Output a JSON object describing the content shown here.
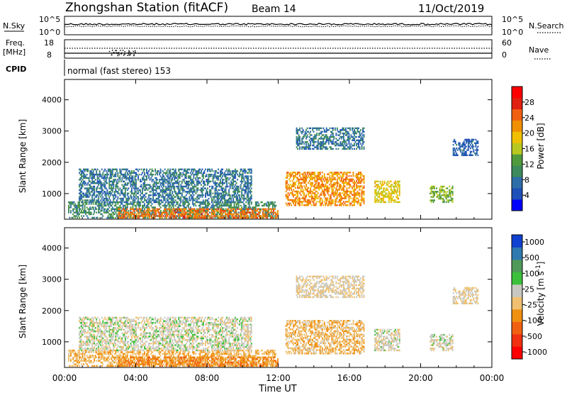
{
  "header": {
    "title": "Zhongshan Station (fitACF)",
    "beam": "Beam 14",
    "date": "11/Oct/2019"
  },
  "status_panel": {
    "nsky_label": "N.Sky",
    "nsearch_label": "N.Search",
    "noise_ticks": [
      "10^5",
      "10^0"
    ],
    "freq_label_1": "Freq.",
    "freq_label_2": "[MHz]",
    "freq_ticks": [
      "18",
      "8"
    ],
    "nave_label": "Nave",
    "nave_ticks": [
      "60",
      "0"
    ],
    "cpid_label": "CPID",
    "cpid_text": "normal (fast stereo) 153"
  },
  "chart_data": [
    {
      "type": "heatmap",
      "panel": "power",
      "ylabel": "Slant Range [km]",
      "xlabel": "",
      "yticks": [
        1000,
        2000,
        3000,
        4000
      ],
      "ylim": [
        180,
        4650
      ],
      "xlim": [
        0,
        24
      ],
      "colorbar": {
        "label": "Power [dB]",
        "ticks": [
          4,
          8,
          12,
          16,
          20,
          24,
          28
        ],
        "range": [
          0,
          32
        ],
        "colors": [
          "#0000ff",
          "#1f4fb8",
          "#2e6ea8",
          "#3d8a5a",
          "#4f9a3c",
          "#b8c820",
          "#f0c000",
          "#f09000",
          "#f06010",
          "#e02010",
          "#ff0000"
        ]
      },
      "regions": [
        {
          "t": [
            0.2,
            11.9
          ],
          "r": [
            200,
            700
          ],
          "power": 10
        },
        {
          "t": [
            0.8,
            10.5
          ],
          "r": [
            700,
            1800
          ],
          "power": 8
        },
        {
          "t": [
            3.0,
            12.0
          ],
          "r": [
            200,
            500
          ],
          "power": 24
        },
        {
          "t": [
            12.4,
            16.8
          ],
          "r": [
            600,
            1700
          ],
          "power": 22
        },
        {
          "t": [
            13.0,
            16.8
          ],
          "r": [
            2400,
            3100
          ],
          "power": 8
        },
        {
          "t": [
            17.4,
            18.8
          ],
          "r": [
            700,
            1400
          ],
          "power": 18
        },
        {
          "t": [
            20.5,
            21.8
          ],
          "r": [
            700,
            1200
          ],
          "power": 14
        },
        {
          "t": [
            21.8,
            23.2
          ],
          "r": [
            2200,
            2700
          ],
          "power": 6
        }
      ]
    },
    {
      "type": "heatmap",
      "panel": "velocity",
      "ylabel": "Slant Range [km]",
      "xlabel": "Time UT",
      "xticks": [
        "00:00",
        "04:00",
        "08:00",
        "12:00",
        "16:00",
        "20:00",
        "00:00"
      ],
      "yticks": [
        1000,
        2000,
        3000,
        4000
      ],
      "ylim": [
        180,
        4650
      ],
      "xlim": [
        0,
        24
      ],
      "colorbar": {
        "label": "Velocity [m s^-1]",
        "ticks": [
          "1000",
          "500",
          "100",
          "25",
          "-25",
          "-100",
          "-500",
          "-1000"
        ],
        "range": [
          -1200,
          1200
        ],
        "colors": [
          "#ff0000",
          "#f03010",
          "#f06010",
          "#f09010",
          "#f0c070",
          "#c8c8c0",
          "#3cc03c",
          "#4f9a5a",
          "#2e7ab0",
          "#1040d0"
        ]
      },
      "regions": [
        {
          "t": [
            0.2,
            11.9
          ],
          "r": [
            200,
            700
          ],
          "velocity": -200
        },
        {
          "t": [
            0.8,
            10.5
          ],
          "r": [
            700,
            1800
          ],
          "velocity": 100
        },
        {
          "t": [
            3.0,
            12.0
          ],
          "r": [
            200,
            500
          ],
          "velocity": -400
        },
        {
          "t": [
            12.4,
            16.8
          ],
          "r": [
            600,
            1700
          ],
          "velocity": -150
        },
        {
          "t": [
            13.0,
            16.8
          ],
          "r": [
            2400,
            3100
          ],
          "velocity": 0
        },
        {
          "t": [
            17.4,
            18.8
          ],
          "r": [
            700,
            1400
          ],
          "velocity": 80
        },
        {
          "t": [
            20.5,
            21.8
          ],
          "r": [
            700,
            1200
          ],
          "velocity": 60
        },
        {
          "t": [
            21.8,
            23.2
          ],
          "r": [
            2200,
            2700
          ],
          "velocity": 0
        }
      ]
    }
  ]
}
